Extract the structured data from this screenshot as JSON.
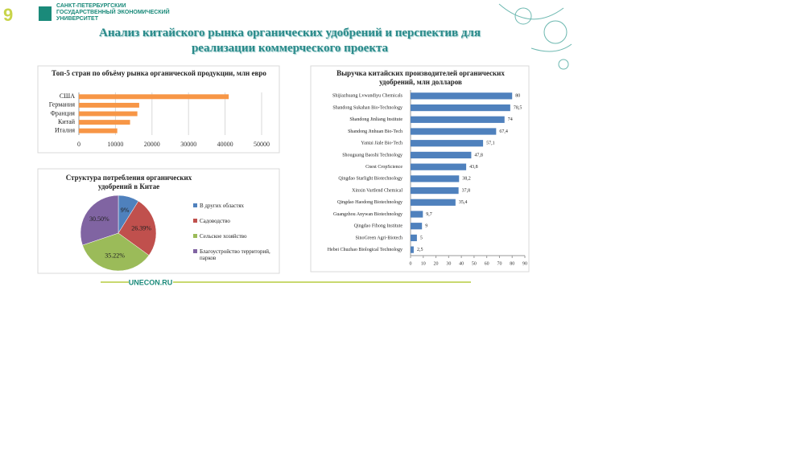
{
  "header": {
    "logo": "САНКТ-ПЕТЕРБУРГСКИЙ ГОСУДАРСТВЕННЫЙ ЭКОНОМИЧЕСКИЙ УНИВЕРСИТЕТ",
    "title": "Анализ китайского рынка органических удобрений и перспектив для реализации коммерческого проекта"
  },
  "footer": {
    "site": "UNECON.RU"
  },
  "chart_data": [
    {
      "type": "hbar",
      "title": "Топ-5 стран по объёму рынка органической продукции, млн евро",
      "categories": [
        "США",
        "Германия",
        "Франция",
        "Китай",
        "Италия"
      ],
      "values": [
        41000,
        16500,
        16000,
        14000,
        10500
      ],
      "color": "#f79646",
      "xlim": [
        0,
        50000
      ],
      "xticks": [
        0,
        10000,
        20000,
        30000,
        40000,
        50000
      ],
      "grid": true
    },
    {
      "type": "pie",
      "title": "Структура потребления органических удобрений в Китае",
      "categories": [
        "В других областях",
        "Садоводство",
        "Сельское хозяйство",
        "Благоустройство территорий, парков"
      ],
      "values": [
        9,
        26.39,
        35.22,
        30.5
      ],
      "value_labels": [
        "9%",
        "26.39%",
        "35.22%",
        "30.50%"
      ],
      "colors": [
        "#4f81bd",
        "#c0504d",
        "#9bbb59",
        "#8064a2"
      ],
      "legend": "right"
    },
    {
      "type": "hbar",
      "title": "Выручка китайских производителей органических удобрений, млн долларов",
      "categories": [
        "Shijiazhuang Lvwandiyu Chemicals",
        "Shandong Sukahan Bio-Technology",
        "Shandong Jinliang Institute",
        "Shandong Jinhuan Bio-Tech",
        "Yantai Jiale Bio-Tech",
        "Shouguang Baoshi Technology",
        "Cnest CropScience",
        "Qingdao Starlight Biotechnology",
        "Xinxin Vartlend Chemical",
        "Qingdao Haodong Biotechnology",
        "Guangzhou Anywan Biotechnology",
        "Qingdao Fihong Institute",
        "SinoGreen Agri-Biotech",
        "Hebei Chuzhao Biological Technology"
      ],
      "values": [
        80,
        78.5,
        74,
        67.4,
        57.1,
        47.8,
        43.8,
        38.2,
        37.8,
        35.4,
        9.7,
        9,
        5,
        2.5
      ],
      "value_labels": [
        "80",
        "78,5",
        "74",
        "67,4",
        "57,1",
        "47,8",
        "43,8",
        "38,2",
        "37,8",
        "35,4",
        "9,7",
        "9",
        "5",
        "2,5"
      ],
      "color": "#4f81bd",
      "xlim": [
        0,
        90
      ],
      "xticks": [
        0,
        10,
        20,
        30,
        40,
        50,
        60,
        70,
        80,
        90
      ],
      "grid": false
    }
  ]
}
